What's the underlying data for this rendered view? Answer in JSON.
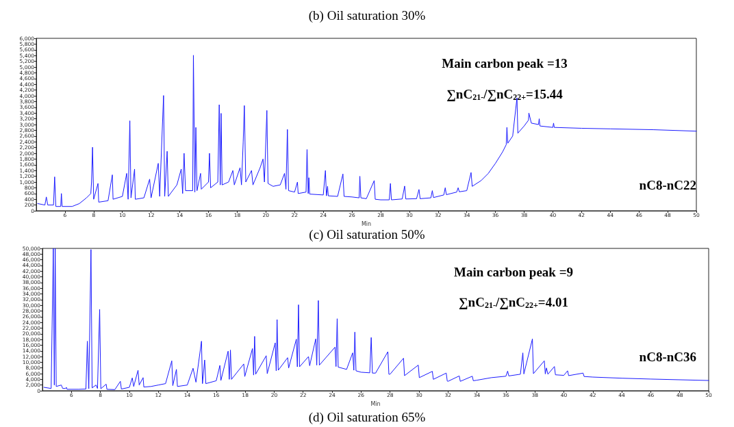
{
  "chart_data": [
    {
      "type": "line",
      "title": "(b) Oil saturation 30%",
      "xlabel": "Min",
      "annotations": [
        "Main carbon peak =13",
        "∑nC$_{21-}$/∑nC$_{22+}$=15.44",
        "nC8-nC22",
        "(c) Oil saturation 50%"
      ],
      "color": "#1a1aff",
      "line_style": "solid",
      "marker": "none",
      "grid": false,
      "xlim": [
        4,
        50
      ],
      "xticks": [
        6,
        8,
        10,
        12,
        14,
        16,
        18,
        20,
        22,
        24,
        26,
        28,
        30,
        32,
        34,
        36,
        38,
        40,
        42,
        44,
        46,
        48,
        50
      ],
      "ylim": [
        0,
        6000
      ],
      "yticks": [
        0,
        {
          "value": 200,
          "label": "200"
        },
        {
          "value": 400,
          "label": "400"
        },
        {
          "value": 600,
          "label": "600"
        },
        {
          "value": 800,
          "label": "800"
        },
        {
          "value": 1000,
          "label": "1,000"
        },
        {
          "value": 1200,
          "label": "1,200"
        },
        {
          "value": 1400,
          "label": "1,400"
        },
        {
          "value": 1600,
          "label": "1,600"
        },
        {
          "value": 1800,
          "label": "1,800"
        },
        {
          "value": 2000,
          "label": "2,000"
        },
        {
          "value": 2200,
          "label": "2,200"
        },
        {
          "value": 2400,
          "label": "2,400"
        },
        {
          "value": 2600,
          "label": "2,600"
        },
        {
          "value": 2800,
          "label": "2,800"
        },
        {
          "value": 3000,
          "label": "3,000"
        },
        {
          "value": 3200,
          "label": "3,200"
        },
        {
          "value": 3400,
          "label": "3,400"
        },
        {
          "value": 3600,
          "label": "3,600"
        },
        {
          "value": 3800,
          "label": "3,800"
        },
        {
          "value": 4000,
          "label": "4,000"
        },
        {
          "value": 4200,
          "label": "4,200"
        },
        {
          "value": 4400,
          "label": "4,400"
        },
        {
          "value": 4600,
          "label": "4,600"
        },
        {
          "value": 4800,
          "label": "4,800"
        },
        {
          "value": 5000,
          "label": "5,000"
        },
        {
          "value": 5200,
          "label": "5,200"
        },
        {
          "value": 5400,
          "label": "5,400"
        },
        {
          "value": 5600,
          "label": "5,600"
        },
        {
          "value": 5800,
          "label": "5,800"
        },
        {
          "value": 6000,
          "label": "6,000"
        }
      ],
      "x": [
        4.1,
        4.6,
        4.7,
        4.8,
        5.2,
        5.28,
        5.36,
        5.7,
        5.75,
        5.8,
        6.5,
        7.0,
        7.5,
        7.8,
        7.85,
        7.92,
        8.0,
        8.3,
        8.35,
        9.0,
        9.3,
        9.35,
        10.0,
        10.3,
        10.4,
        10.52,
        10.6,
        10.85,
        10.9,
        11.5,
        11.9,
        12.0,
        12.5,
        12.6,
        12.87,
        12.95,
        13.12,
        13.2,
        13.8,
        14.1,
        14.2,
        14.3,
        14.4,
        14.9,
        14.95,
        15.05,
        15.12,
        15.2,
        15.45,
        15.5,
        16.0,
        16.07,
        16.15,
        16.65,
        16.75,
        16.82,
        16.88,
        16.95,
        17.4,
        17.7,
        17.8,
        18.2,
        18.3,
        18.42,
        18.5,
        18.6,
        19.0,
        19.1,
        19.6,
        19.8,
        19.9,
        20.07,
        20.15,
        20.5,
        21.0,
        21.3,
        21.4,
        21.5,
        21.58,
        22.0,
        22.2,
        22.25,
        22.8,
        22.87,
        22.95,
        23.0,
        23.05,
        24.0,
        24.15,
        24.22,
        24.3,
        24.35,
        25.0,
        25.37,
        25.45,
        26.0,
        26.5,
        26.55,
        26.62,
        27.0,
        27.55,
        27.62,
        28.0,
        28.6,
        28.68,
        28.75,
        29.5,
        29.67,
        29.75,
        30.5,
        30.67,
        30.75,
        31.5,
        31.6,
        31.68,
        32.4,
        32.5,
        32.58,
        33.3,
        33.4,
        33.48,
        34.0,
        34.3,
        34.38,
        35.0,
        35.5,
        36.0,
        36.5,
        36.75,
        36.8,
        36.86,
        37.2,
        37.5,
        37.56,
        38.0,
        38.3,
        38.33,
        38.5,
        39.0,
        39.05,
        39.1,
        40.0,
        40.05,
        40.1,
        42.0,
        44.0,
        47.0,
        50.0
      ],
      "values": [
        250,
        200,
        480,
        200,
        200,
        1180,
        150,
        150,
        600,
        150,
        150,
        250,
        450,
        600,
        1000,
        2210,
        400,
        950,
        300,
        350,
        1250,
        400,
        500,
        1300,
        400,
        3130,
        450,
        1450,
        400,
        450,
        1100,
        450,
        1650,
        500,
        4010,
        500,
        2070,
        500,
        900,
        1450,
        600,
        2000,
        700,
        700,
        5410,
        650,
        2900,
        700,
        1300,
        750,
        1000,
        2000,
        800,
        1000,
        3690,
        900,
        3390,
        900,
        1000,
        1400,
        900,
        1500,
        900,
        2400,
        3660,
        1000,
        1400,
        900,
        1500,
        1800,
        1000,
        3490,
        950,
        850,
        900,
        1300,
        750,
        2830,
        700,
        650,
        1000,
        600,
        650,
        2130,
        600,
        1150,
        580,
        550,
        1400,
        520,
        850,
        520,
        500,
        1280,
        500,
        480,
        450,
        1200,
        450,
        420,
        1050,
        400,
        380,
        380,
        950,
        380,
        410,
        860,
        410,
        420,
        740,
        420,
        450,
        700,
        460,
        550,
        800,
        560,
        650,
        800,
        660,
        700,
        1330,
        850,
        1050,
        1300,
        1650,
        2050,
        2300,
        2900,
        2350,
        2600,
        3930,
        2700,
        2950,
        3150,
        3400,
        3050,
        3000,
        3200,
        2950,
        2900,
        3050,
        2900,
        2870,
        2850,
        2820,
        2770
      ]
    },
    {
      "type": "line",
      "xlabel": "Min",
      "annotations": [
        "Main carbon peak =9",
        "∑nC$_{21-}$/∑nC$_{22+}$=4.01",
        "nC8-nC36",
        "(d) Oil saturation 65%"
      ],
      "color": "#1a1aff",
      "line_style": "solid",
      "marker": "none",
      "grid": false,
      "xlim": [
        4,
        50
      ],
      "xticks": [
        6,
        8,
        10,
        12,
        14,
        16,
        18,
        20,
        22,
        24,
        26,
        28,
        30,
        32,
        34,
        36,
        38,
        40,
        42,
        44,
        46,
        48,
        50
      ],
      "ylim": [
        0,
        50000
      ],
      "yticks": [
        0,
        {
          "value": 2000,
          "label": "2,000"
        },
        {
          "value": 4000,
          "label": "4,000"
        },
        {
          "value": 6000,
          "label": "6,000"
        },
        {
          "value": 8000,
          "label": "8,000"
        },
        {
          "value": 10000,
          "label": "10,000"
        },
        {
          "value": 12000,
          "label": "12,000"
        },
        {
          "value": 14000,
          "label": "14,000"
        },
        {
          "value": 16000,
          "label": "16,000"
        },
        {
          "value": 18000,
          "label": "18,000"
        },
        {
          "value": 20000,
          "label": "20,000"
        },
        {
          "value": 22000,
          "label": "22,000"
        },
        {
          "value": 24000,
          "label": "24,000"
        },
        {
          "value": 26000,
          "label": "26,000"
        },
        {
          "value": 28000,
          "label": "28,000"
        },
        {
          "value": 30000,
          "label": "30,000"
        },
        {
          "value": 32000,
          "label": "32,000"
        },
        {
          "value": 34000,
          "label": "34,000"
        },
        {
          "value": 36000,
          "label": "36,000"
        },
        {
          "value": 38000,
          "label": "38,000"
        },
        {
          "value": 40000,
          "label": "40,000"
        },
        {
          "value": 42000,
          "label": "42,000"
        },
        {
          "value": 44000,
          "label": "44,000"
        },
        {
          "value": 46000,
          "label": "46,000"
        },
        {
          "value": 48000,
          "label": "48,000"
        },
        {
          "value": 50000,
          "label": "50,000"
        }
      ],
      "x": [
        4.1,
        4.6,
        4.75,
        4.82,
        4.88,
        4.95,
        5.3,
        5.4,
        5.6,
        5.65,
        5.7,
        6.5,
        7.0,
        7.1,
        7.2,
        7.35,
        7.43,
        7.7,
        7.8,
        7.95,
        8.03,
        8.4,
        8.45,
        9.0,
        9.38,
        9.45,
        10.0,
        10.2,
        10.3,
        10.6,
        10.68,
        10.95,
        11.0,
        11.5,
        12.0,
        12.5,
        12.93,
        13.0,
        13.25,
        13.32,
        14.0,
        14.4,
        14.6,
        14.98,
        15.05,
        15.2,
        15.28,
        16.0,
        16.25,
        16.32,
        16.82,
        16.9,
        16.98,
        17.05,
        17.9,
        17.97,
        18.5,
        18.58,
        18.65,
        18.72,
        19.45,
        19.52,
        20.07,
        20.14,
        20.2,
        20.28,
        20.93,
        21.0,
        21.53,
        21.6,
        21.68,
        21.75,
        22.37,
        22.45,
        22.87,
        22.94,
        23.05,
        23.12,
        24.2,
        24.27,
        24.35,
        24.42,
        25.0,
        25.42,
        25.5,
        25.57,
        25.65,
        26.0,
        26.6,
        26.7,
        26.78,
        27.0,
        27.85,
        27.92,
        28.0,
        28.93,
        29.0,
        29.95,
        30.02,
        30.92,
        30.99,
        31.88,
        31.95,
        32.0,
        32.78,
        32.85,
        33.68,
        33.75,
        34.0,
        35.0,
        36.0,
        36.12,
        36.2,
        37.0,
        37.17,
        37.24,
        37.83,
        37.9,
        38.65,
        38.72,
        38.8,
        38.9,
        39.35,
        39.42,
        40.0,
        40.26,
        40.33,
        41.33,
        41.4,
        42.0,
        44.0,
        46.0,
        50.0
      ],
      "values": [
        1200,
        800,
        50000,
        2000,
        50000,
        1500,
        2000,
        800,
        800,
        1200,
        500,
        500,
        600,
        17400,
        700,
        49600,
        1000,
        2000,
        800,
        28600,
        700,
        2300,
        500,
        400,
        3300,
        600,
        1200,
        4500,
        1500,
        7200,
        2000,
        4600,
        1300,
        1500,
        2000,
        2500,
        10500,
        1800,
        7500,
        1500,
        2000,
        7900,
        3000,
        17400,
        2500,
        10800,
        2500,
        3500,
        8900,
        3600,
        13900,
        4000,
        14300,
        4000,
        9400,
        5000,
        14800,
        5500,
        19100,
        5800,
        12300,
        6000,
        16800,
        7000,
        25000,
        7200,
        11600,
        8000,
        18100,
        8400,
        30200,
        8400,
        12000,
        8800,
        18200,
        9000,
        31700,
        9000,
        15300,
        8500,
        25300,
        8300,
        7500,
        13300,
        7200,
        20600,
        7000,
        6500,
        6300,
        18700,
        6200,
        6200,
        13700,
        5800,
        5800,
        11400,
        5300,
        9000,
        4600,
        6800,
        4000,
        6200,
        3400,
        3300,
        5200,
        3300,
        5100,
        3500,
        3700,
        4600,
        5100,
        6900,
        5200,
        5800,
        13300,
        5900,
        18200,
        6000,
        10500,
        5900,
        8000,
        5800,
        8500,
        5600,
        5400,
        7000,
        5300,
        6200,
        5000,
        4800,
        4400,
        4100,
        3600
      ]
    }
  ]
}
